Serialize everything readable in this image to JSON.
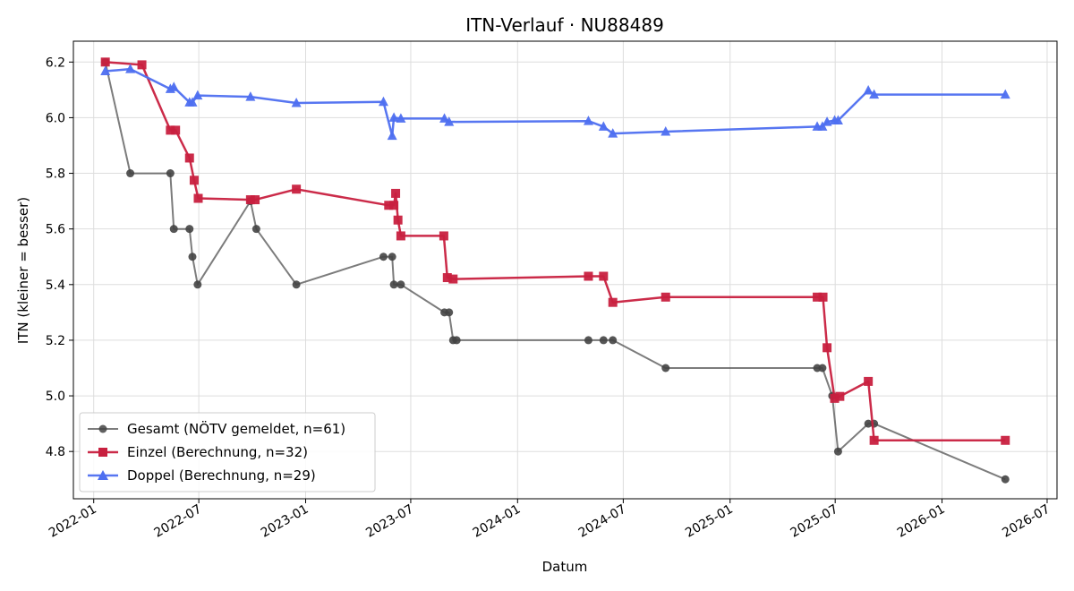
{
  "chart_data": {
    "type": "line",
    "title": "ITN-Verlauf · NU88489",
    "xlabel": "Datum",
    "ylabel": "ITN  (kleiner = besser)",
    "x_is_date": true,
    "xlim": [
      "2021-11-27",
      "2026-07-18"
    ],
    "ylim": [
      4.63,
      6.275
    ],
    "x_ticks": [
      "2022-01",
      "2022-07",
      "2023-01",
      "2023-07",
      "2024-01",
      "2024-07",
      "2025-01",
      "2025-07",
      "2026-01",
      "2026-07"
    ],
    "y_ticks": [
      4.8,
      5.0,
      5.2,
      5.4,
      5.6,
      5.8,
      6.0,
      6.2
    ],
    "grid": true,
    "legend_position": "bottom-left",
    "series": [
      {
        "name": "Gesamt (NÖTV gemeldet, n=61)",
        "color": "#444444",
        "marker": "circle",
        "points": [
          [
            "2022-01-21",
            6.2
          ],
          [
            "2022-03-05",
            5.8
          ],
          [
            "2022-05-13",
            5.8
          ],
          [
            "2022-05-19",
            5.6
          ],
          [
            "2022-06-15",
            5.6
          ],
          [
            "2022-06-20",
            5.5
          ],
          [
            "2022-06-29",
            5.4
          ],
          [
            "2022-09-28",
            5.7
          ],
          [
            "2022-10-08",
            5.6
          ],
          [
            "2022-12-16",
            5.4
          ],
          [
            "2023-05-15",
            5.5
          ],
          [
            "2023-05-30",
            5.5
          ],
          [
            "2023-06-02",
            5.4
          ],
          [
            "2023-06-14",
            5.4
          ],
          [
            "2023-08-28",
            5.3
          ],
          [
            "2023-09-05",
            5.3
          ],
          [
            "2023-09-12",
            5.2
          ],
          [
            "2023-09-18",
            5.2
          ],
          [
            "2024-05-02",
            5.2
          ],
          [
            "2024-05-28",
            5.2
          ],
          [
            "2024-06-13",
            5.2
          ],
          [
            "2024-09-12",
            5.1
          ],
          [
            "2025-05-31",
            5.1
          ],
          [
            "2025-06-09",
            5.1
          ],
          [
            "2025-06-26",
            5.0
          ],
          [
            "2025-07-06",
            4.8
          ],
          [
            "2025-08-27",
            4.9
          ],
          [
            "2025-09-06",
            4.9
          ],
          [
            "2026-04-20",
            4.7
          ]
        ]
      },
      {
        "name": "Einzel (Berechnung, n=32)",
        "color": "#c8203f",
        "marker": "square",
        "points": [
          [
            "2022-01-21",
            6.2
          ],
          [
            "2022-03-25",
            6.19
          ],
          [
            "2022-05-13",
            5.955
          ],
          [
            "2022-05-22",
            5.955
          ],
          [
            "2022-06-15",
            5.855
          ],
          [
            "2022-06-23",
            5.775
          ],
          [
            "2022-06-30",
            5.71
          ],
          [
            "2022-09-28",
            5.705
          ],
          [
            "2022-10-06",
            5.705
          ],
          [
            "2022-12-16",
            5.743
          ],
          [
            "2023-05-24",
            5.685
          ],
          [
            "2023-06-02",
            5.685
          ],
          [
            "2023-06-05",
            5.728
          ],
          [
            "2023-06-09",
            5.632
          ],
          [
            "2023-06-14",
            5.575
          ],
          [
            "2023-08-27",
            5.575
          ],
          [
            "2023-09-02",
            5.425
          ],
          [
            "2023-09-12",
            5.42
          ],
          [
            "2024-05-02",
            5.43
          ],
          [
            "2024-05-28",
            5.43
          ],
          [
            "2024-06-13",
            5.336
          ],
          [
            "2024-09-12",
            5.355
          ],
          [
            "2025-05-31",
            5.355
          ],
          [
            "2025-06-10",
            5.355
          ],
          [
            "2025-06-17",
            5.173
          ],
          [
            "2025-06-30",
            4.991
          ],
          [
            "2025-07-09",
            4.998
          ],
          [
            "2025-08-27",
            5.052
          ],
          [
            "2025-09-06",
            4.84
          ],
          [
            "2026-04-20",
            4.84
          ]
        ]
      },
      {
        "name": "Doppel (Berechnung, n=29)",
        "color": "#4e6ff0",
        "marker": "triangle",
        "points": [
          [
            "2022-01-21",
            6.167
          ],
          [
            "2022-03-05",
            6.175
          ],
          [
            "2022-05-13",
            6.103
          ],
          [
            "2022-05-19",
            6.11
          ],
          [
            "2022-06-15",
            6.055
          ],
          [
            "2022-06-20",
            6.055
          ],
          [
            "2022-06-29",
            6.08
          ],
          [
            "2022-09-28",
            6.075
          ],
          [
            "2022-12-16",
            6.053
          ],
          [
            "2023-05-15",
            6.057
          ],
          [
            "2023-05-30",
            5.935
          ],
          [
            "2023-06-02",
            6.0
          ],
          [
            "2023-06-14",
            5.997
          ],
          [
            "2023-08-28",
            5.997
          ],
          [
            "2023-09-05",
            5.985
          ],
          [
            "2024-05-02",
            5.988
          ],
          [
            "2024-05-28",
            5.968
          ],
          [
            "2024-06-13",
            5.943
          ],
          [
            "2024-09-12",
            5.95
          ],
          [
            "2025-05-31",
            5.968
          ],
          [
            "2025-06-09",
            5.968
          ],
          [
            "2025-06-17",
            5.985
          ],
          [
            "2025-06-30",
            5.99
          ],
          [
            "2025-07-06",
            5.99
          ],
          [
            "2025-08-27",
            6.098
          ],
          [
            "2025-09-06",
            6.083
          ],
          [
            "2026-04-20",
            6.083
          ]
        ]
      }
    ]
  }
}
